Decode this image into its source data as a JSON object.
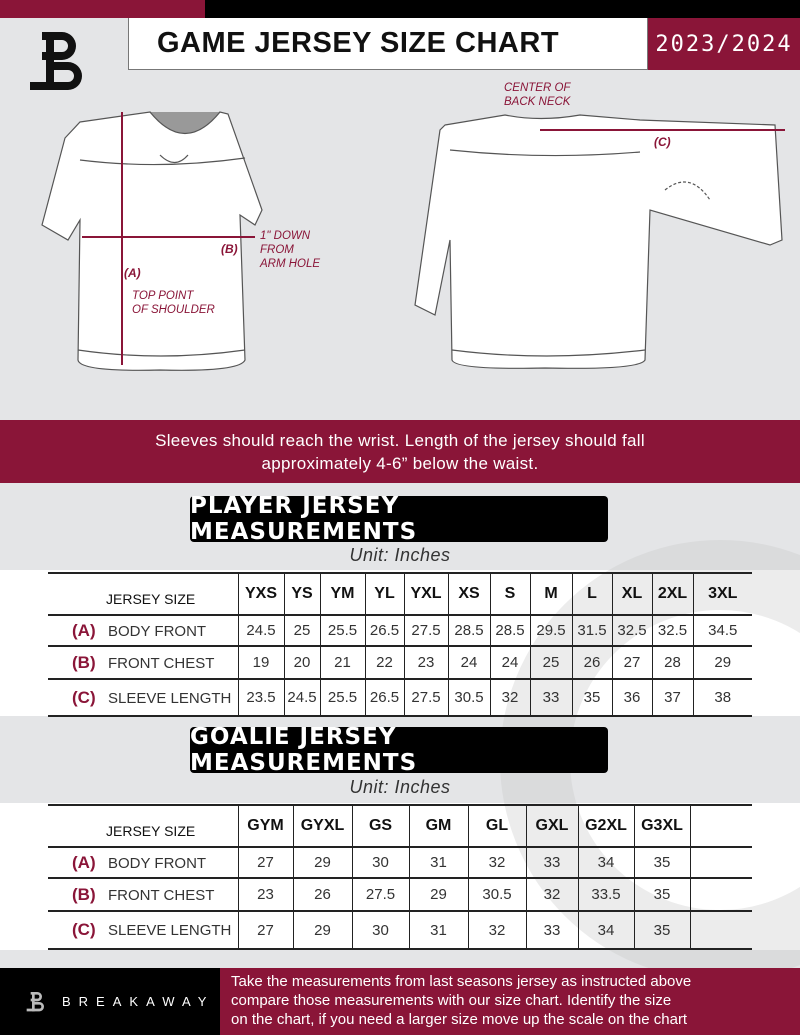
{
  "header": {
    "title": "GAME JERSEY SIZE CHART",
    "season": "2023/2024"
  },
  "colors": {
    "accent": "#8a1538",
    "dark": "#000000",
    "background": "#e4e5e7"
  },
  "diagram": {
    "front": {
      "a_label": "(A)",
      "a_note_1": "TOP POINT",
      "a_note_2": "OF SHOULDER",
      "b_label": "(B)",
      "b_note_1": "1\" DOWN",
      "b_note_2": "FROM",
      "b_note_3": "ARM HOLE"
    },
    "back": {
      "c_note_1": "CENTER OF",
      "c_note_2": "BACK NECK",
      "c_label": "(C)"
    }
  },
  "banner": {
    "line1": "Sleeves should reach the wrist. Length of the jersey should fall",
    "line2": "approximately 4-6” below the waist."
  },
  "player": {
    "title": "PLAYER JERSEY MEASUREMENTS",
    "unit": "Unit: Inches",
    "size_header": "JERSEY SIZE",
    "sizes": [
      "YXS",
      "YS",
      "YM",
      "YL",
      "YXL",
      "XS",
      "S",
      "M",
      "L",
      "XL",
      "2XL",
      "3XL"
    ],
    "rows": [
      {
        "letter": "(A)",
        "label": "BODY FRONT",
        "values": [
          "24.5",
          "25",
          "25.5",
          "26.5",
          "27.5",
          "28.5",
          "28.5",
          "29.5",
          "31.5",
          "32.5",
          "32.5",
          "34.5"
        ]
      },
      {
        "letter": "(B)",
        "label": "FRONT CHEST",
        "values": [
          "19",
          "20",
          "21",
          "22",
          "23",
          "24",
          "24",
          "25",
          "26",
          "27",
          "28",
          "29"
        ]
      },
      {
        "letter": "(C)",
        "label": "SLEEVE LENGTH",
        "values": [
          "23.5",
          "24.5",
          "25.5",
          "26.5",
          "27.5",
          "30.5",
          "32",
          "33",
          "35",
          "36",
          "37",
          "38"
        ]
      }
    ]
  },
  "goalie": {
    "title": "GOALIE JERSEY MEASUREMENTS",
    "unit": "Unit: Inches",
    "size_header": "JERSEY SIZE",
    "sizes": [
      "GYM",
      "GYXL",
      "GS",
      "GM",
      "GL",
      "GXL",
      "G2XL",
      "G3XL",
      ""
    ],
    "rows": [
      {
        "letter": "(A)",
        "label": "BODY FRONT",
        "values": [
          "27",
          "29",
          "30",
          "31",
          "32",
          "33",
          "34",
          "35",
          ""
        ]
      },
      {
        "letter": "(B)",
        "label": "FRONT CHEST",
        "values": [
          "23",
          "26",
          "27.5",
          "29",
          "30.5",
          "32",
          "33.5",
          "35",
          ""
        ]
      },
      {
        "letter": "(C)",
        "label": "SLEEVE LENGTH",
        "values": [
          "27",
          "29",
          "30",
          "31",
          "32",
          "33",
          "34",
          "35",
          ""
        ]
      }
    ]
  },
  "footer": {
    "brand": "BREAKAWAY",
    "text_1": "Take the measurements from last seasons jersey as instructed above",
    "text_2": "compare those measurements  with our size chart. Identify the size",
    "text_3": "on the chart, if you need a larger size move up the scale on the chart"
  }
}
